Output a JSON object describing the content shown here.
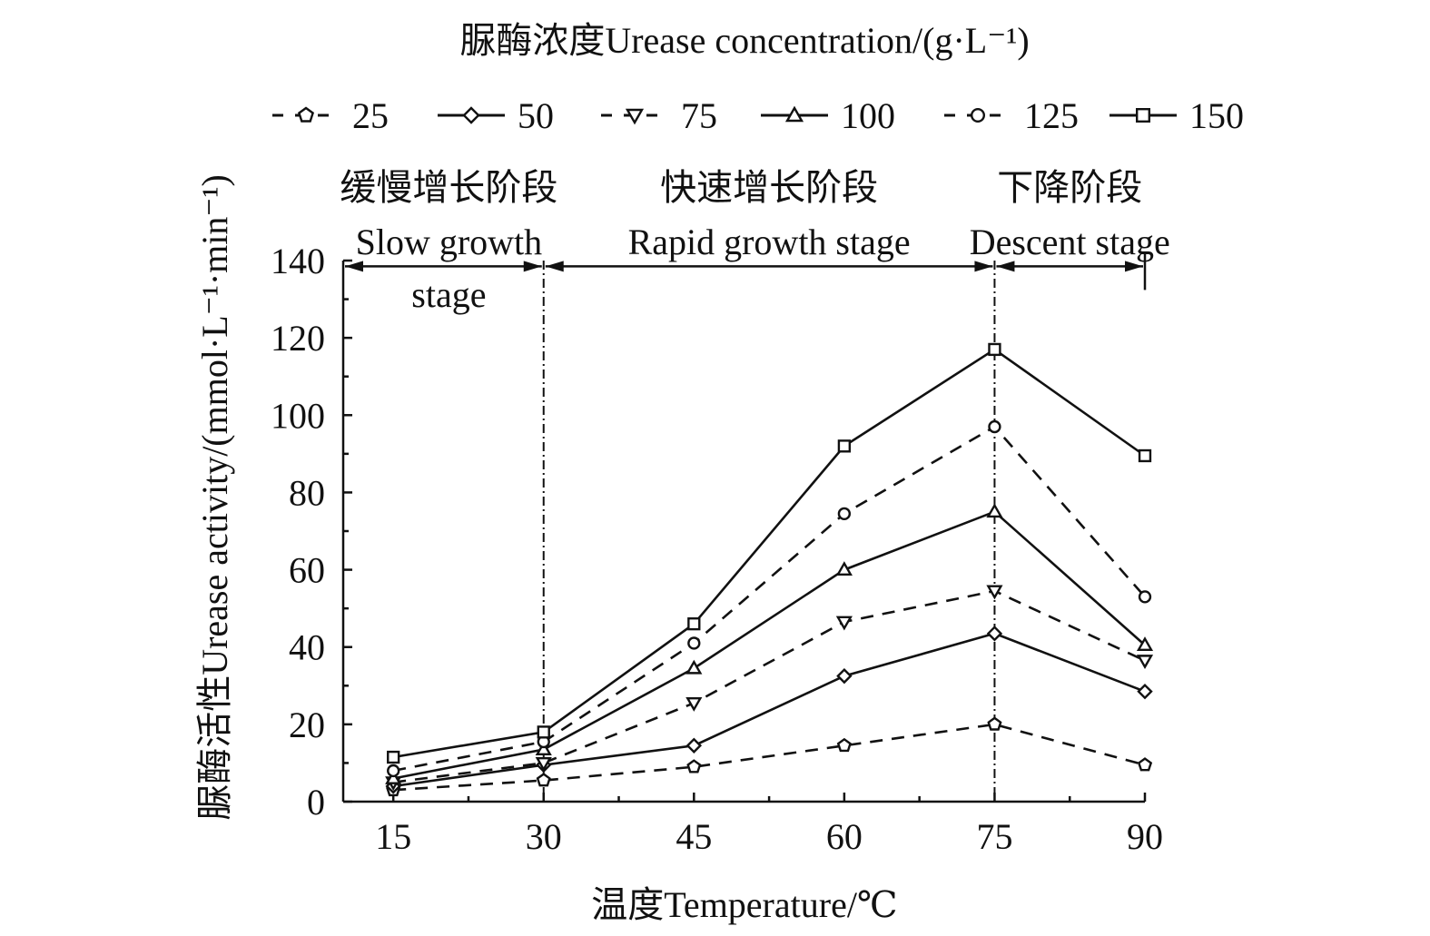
{
  "chart_data": {
    "type": "line",
    "legend_title": "脲酶浓度Urease concentration/(g·L⁻¹)",
    "xlabel": "温度Temperature/℃",
    "ylabel": "脲酶活性Urease activity/(mmol·L⁻¹·min⁻¹)",
    "xlim": [
      10,
      90
    ],
    "ylim": [
      0,
      140
    ],
    "x": [
      15,
      30,
      45,
      60,
      75,
      90
    ],
    "x_ticks": [
      "15",
      "30",
      "45",
      "60",
      "75",
      "90"
    ],
    "y_ticks": [
      "0",
      "20",
      "40",
      "60",
      "80",
      "100",
      "120",
      "140"
    ],
    "legend_position": "top",
    "series": [
      {
        "name": "25",
        "marker": "pentagon",
        "dash": true,
        "values": [
          3,
          5.5,
          9,
          14.5,
          20,
          9.5
        ]
      },
      {
        "name": "50",
        "marker": "diamond",
        "dash": false,
        "values": [
          4,
          9.5,
          14.5,
          32.5,
          43.5,
          28.5
        ]
      },
      {
        "name": "75",
        "marker": "triangle-down",
        "dash": true,
        "values": [
          5,
          10,
          25.5,
          46.5,
          54.5,
          36.5
        ]
      },
      {
        "name": "100",
        "marker": "triangle-up",
        "dash": false,
        "values": [
          6,
          13.5,
          34.5,
          60,
          75,
          40.5
        ]
      },
      {
        "name": "125",
        "marker": "circle",
        "dash": true,
        "values": [
          8,
          15.5,
          41,
          74.5,
          97,
          53
        ]
      },
      {
        "name": "150",
        "marker": "square",
        "dash": false,
        "values": [
          11.5,
          18,
          46,
          92,
          117,
          89.5
        ]
      }
    ],
    "stage_boundaries": [
      30,
      75,
      90
    ],
    "stages": [
      {
        "cn": "缓慢增长阶段",
        "en": [
          "Slow growth",
          "stage"
        ],
        "from": 10,
        "to": 30
      },
      {
        "cn": "快速增长阶段",
        "en": [
          "Rapid growth stage"
        ],
        "from": 30,
        "to": 75
      },
      {
        "cn": "下降阶段",
        "en": [
          "Descent stage"
        ],
        "from": 75,
        "to": 90
      }
    ]
  }
}
